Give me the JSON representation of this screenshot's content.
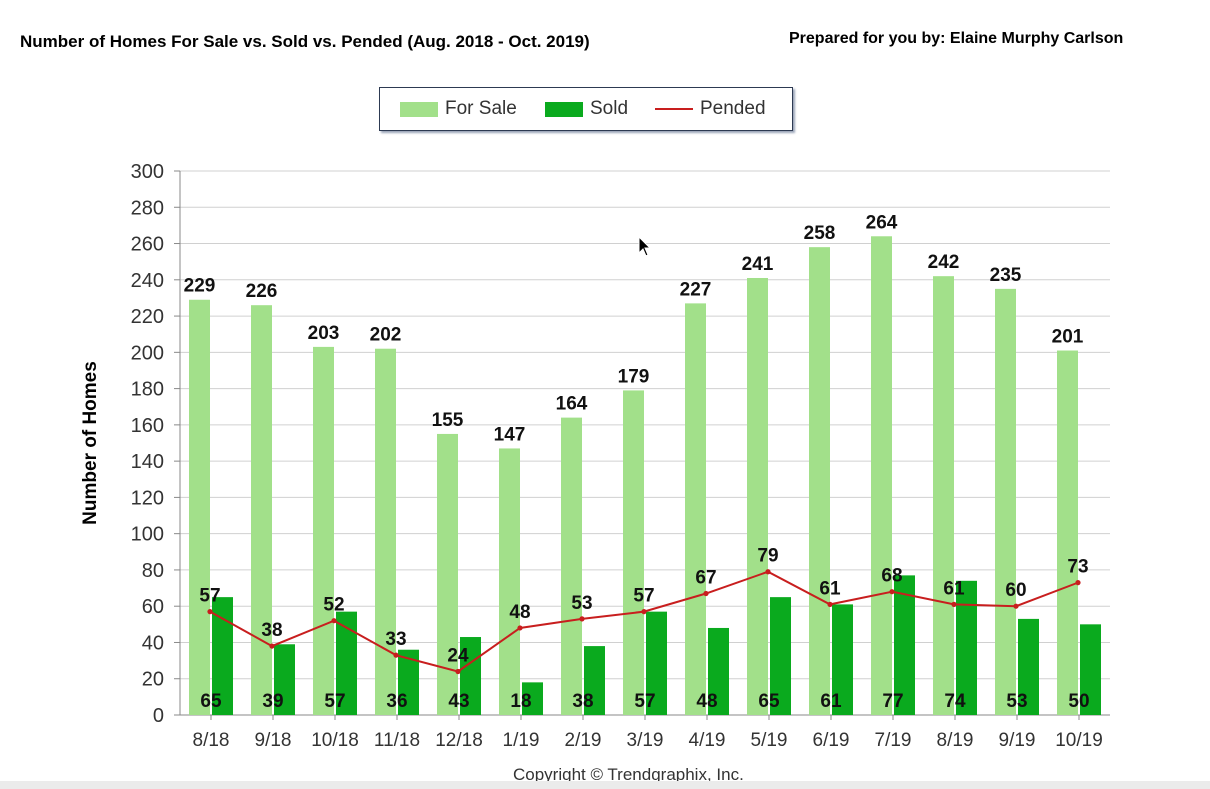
{
  "header": {
    "title": "Number of Homes For Sale vs. Sold vs. Pended (Aug. 2018 - Oct. 2019)",
    "prepared_by": "Prepared for you by: Elaine Murphy Carlson"
  },
  "footer": {
    "copyright": "Copyright © Trendgraphix, Inc."
  },
  "colors": {
    "for_sale": "#a2e08a",
    "sold": "#0aaa1e",
    "pended": "#c81e1e",
    "grid": "#d0d0d0"
  },
  "icons": {
    "cursor": "mouse-pointer-icon"
  },
  "chart_data": {
    "type": "bar",
    "title": "Number of Homes For Sale vs. Sold vs. Pended (Aug. 2018 - Oct. 2019)",
    "xlabel": "",
    "ylabel": "Number of Homes",
    "ylim": [
      0,
      300
    ],
    "yticks": [
      0,
      20,
      40,
      60,
      80,
      100,
      120,
      140,
      160,
      180,
      200,
      220,
      240,
      260,
      280,
      300
    ],
    "grid": true,
    "legend_position": "top-center",
    "categories": [
      "8/18",
      "9/18",
      "10/18",
      "11/18",
      "12/18",
      "1/19",
      "2/19",
      "3/19",
      "4/19",
      "5/19",
      "6/19",
      "7/19",
      "8/19",
      "9/19",
      "10/19"
    ],
    "series": [
      {
        "name": "For Sale",
        "type": "bar",
        "values": [
          229,
          226,
          203,
          202,
          155,
          147,
          164,
          179,
          227,
          241,
          258,
          264,
          242,
          235,
          201
        ]
      },
      {
        "name": "Sold",
        "type": "bar",
        "values": [
          65,
          39,
          57,
          36,
          43,
          18,
          38,
          57,
          48,
          65,
          61,
          77,
          74,
          53,
          50
        ]
      },
      {
        "name": "Pended",
        "type": "line",
        "values": [
          57,
          38,
          52,
          33,
          24,
          48,
          53,
          57,
          67,
          79,
          61,
          68,
          61,
          60,
          73
        ]
      }
    ]
  }
}
